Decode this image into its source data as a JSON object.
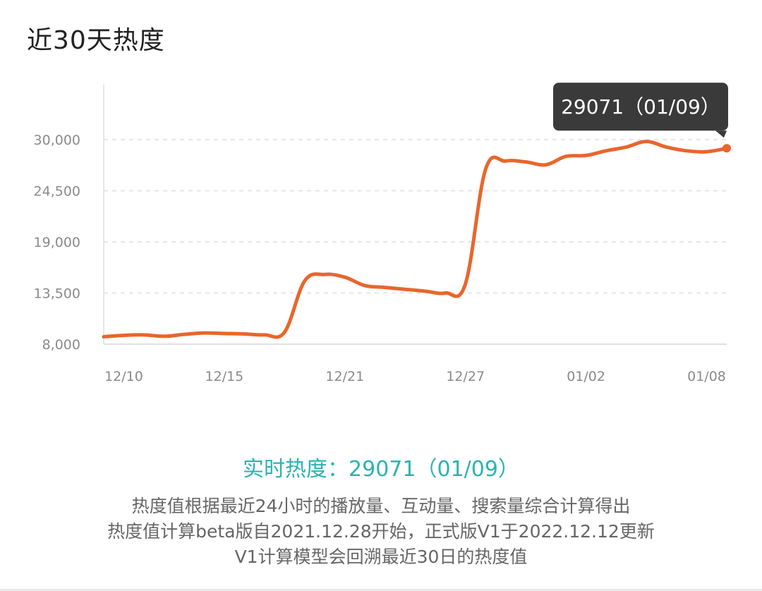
{
  "header": {
    "title": "近30天热度"
  },
  "chart_data": {
    "type": "line",
    "title": "近30天热度",
    "xlabel": "",
    "ylabel": "",
    "ylim": [
      8000,
      30000
    ],
    "yticks": [
      8000,
      13500,
      19000,
      24500,
      30000
    ],
    "ytick_labels": [
      "8,000",
      "13,500",
      "19,000",
      "24,500",
      "30,000"
    ],
    "x": [
      "12/09",
      "12/10",
      "12/11",
      "12/12",
      "12/13",
      "12/14",
      "12/15",
      "12/16",
      "12/17",
      "12/18",
      "12/19",
      "12/20",
      "12/21",
      "12/22",
      "12/23",
      "12/24",
      "12/25",
      "12/26",
      "12/27",
      "12/28",
      "12/29",
      "12/30",
      "12/31",
      "01/01",
      "01/02",
      "01/03",
      "01/04",
      "01/05",
      "01/06",
      "01/07",
      "01/08",
      "01/09"
    ],
    "xtick_labels": [
      "12/10",
      "12/15",
      "12/21",
      "12/27",
      "01/02",
      "01/08"
    ],
    "series": [
      {
        "values": [
          8800,
          8950,
          9000,
          8850,
          9050,
          9200,
          9150,
          9100,
          9000,
          9300,
          14800,
          15500,
          15200,
          14300,
          14100,
          13900,
          13700,
          13500,
          14500,
          26800,
          27700,
          27600,
          27300,
          28200,
          28300,
          28800,
          29200,
          29800,
          29200,
          28800,
          28700,
          29071
        ]
      }
    ],
    "grid": true,
    "line_color": "#e8662c",
    "tooltip": {
      "label": "29071（01/09）"
    }
  },
  "summary": {
    "realtime": "实时热度：29071（01/09）",
    "desc1": "热度值根据最近24小时的播放量、互动量、搜索量综合计算得出",
    "desc2": "热度值计算beta版自2021.12.28开始，正式版V1于2022.12.12更新",
    "desc3": "V1计算模型会回溯最近30日的热度值"
  },
  "colors": {
    "accent": "#2bb3b1",
    "line": "#e8662c",
    "tooltip_bg": "#3a3a3a"
  }
}
